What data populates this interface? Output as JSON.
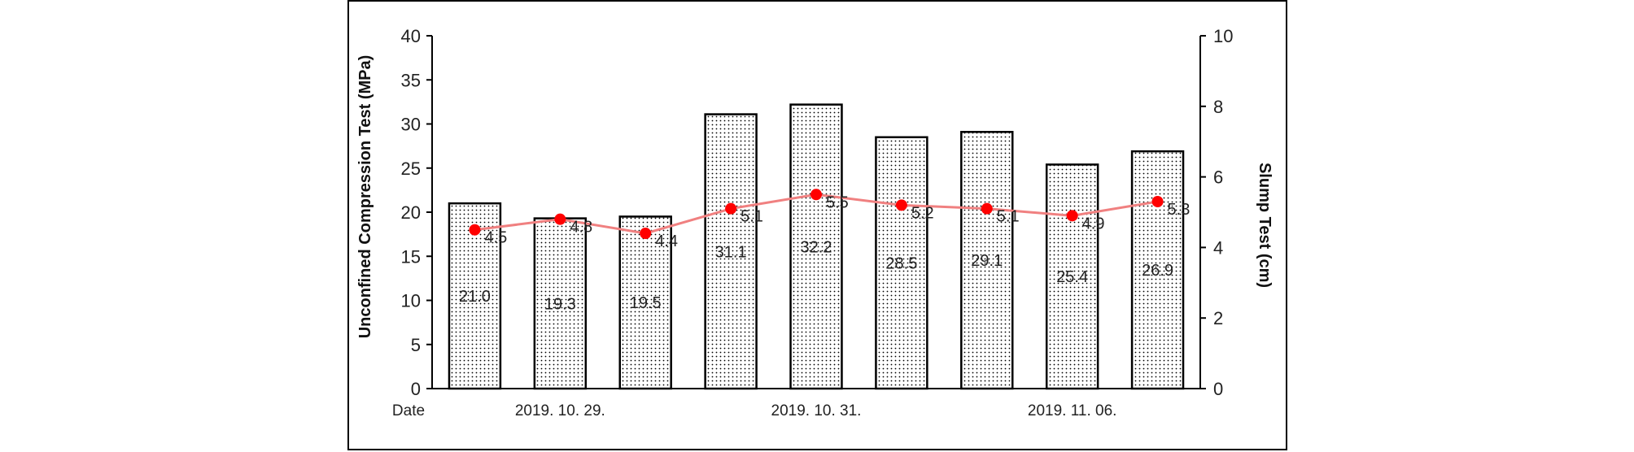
{
  "chart_data": {
    "type": "bar",
    "categories": [
      "",
      "2019. 10. 29.",
      "",
      "",
      "2019. 10. 31.",
      "",
      "",
      "2019. 11. 06.",
      ""
    ],
    "x_axis_prefix_label": "Date",
    "series": [
      {
        "name": "Unconfined Compression Test (MPa)",
        "type": "bar",
        "axis": "left",
        "values": [
          21.0,
          19.3,
          19.5,
          31.1,
          32.2,
          28.5,
          29.1,
          25.4,
          26.9
        ],
        "labels": [
          "21.0",
          "19.3",
          "19.5",
          "31.1",
          "32.2",
          "28.5",
          "29.1",
          "25.4",
          "26.9"
        ]
      },
      {
        "name": "Slump Test (cm)",
        "type": "line",
        "axis": "right",
        "values": [
          4.5,
          4.8,
          4.4,
          5.1,
          5.5,
          5.2,
          5.1,
          4.9,
          5.3
        ],
        "labels": [
          "4.5",
          "4.8",
          "4.4",
          "5.1",
          "5.5",
          "5.2",
          "5.1",
          "4.9",
          "5.3"
        ]
      }
    ],
    "ylabel": "Unconfined Compression Test (MPa)",
    "y2label": "Slump Test (cm)",
    "ylim": [
      0,
      40
    ],
    "y2lim": [
      0,
      10
    ],
    "yticks": [
      "0",
      "5",
      "10",
      "15",
      "20",
      "25",
      "30",
      "35",
      "40"
    ],
    "y2ticks": [
      "0",
      "2",
      "4",
      "6",
      "8",
      "10"
    ],
    "grid": false,
    "legend": "none",
    "colors": {
      "bar_fill": "#ffffff",
      "bar_pattern": "#000000",
      "bar_stroke": "#000000",
      "line": "#f08080",
      "marker": "#ff0000"
    }
  }
}
